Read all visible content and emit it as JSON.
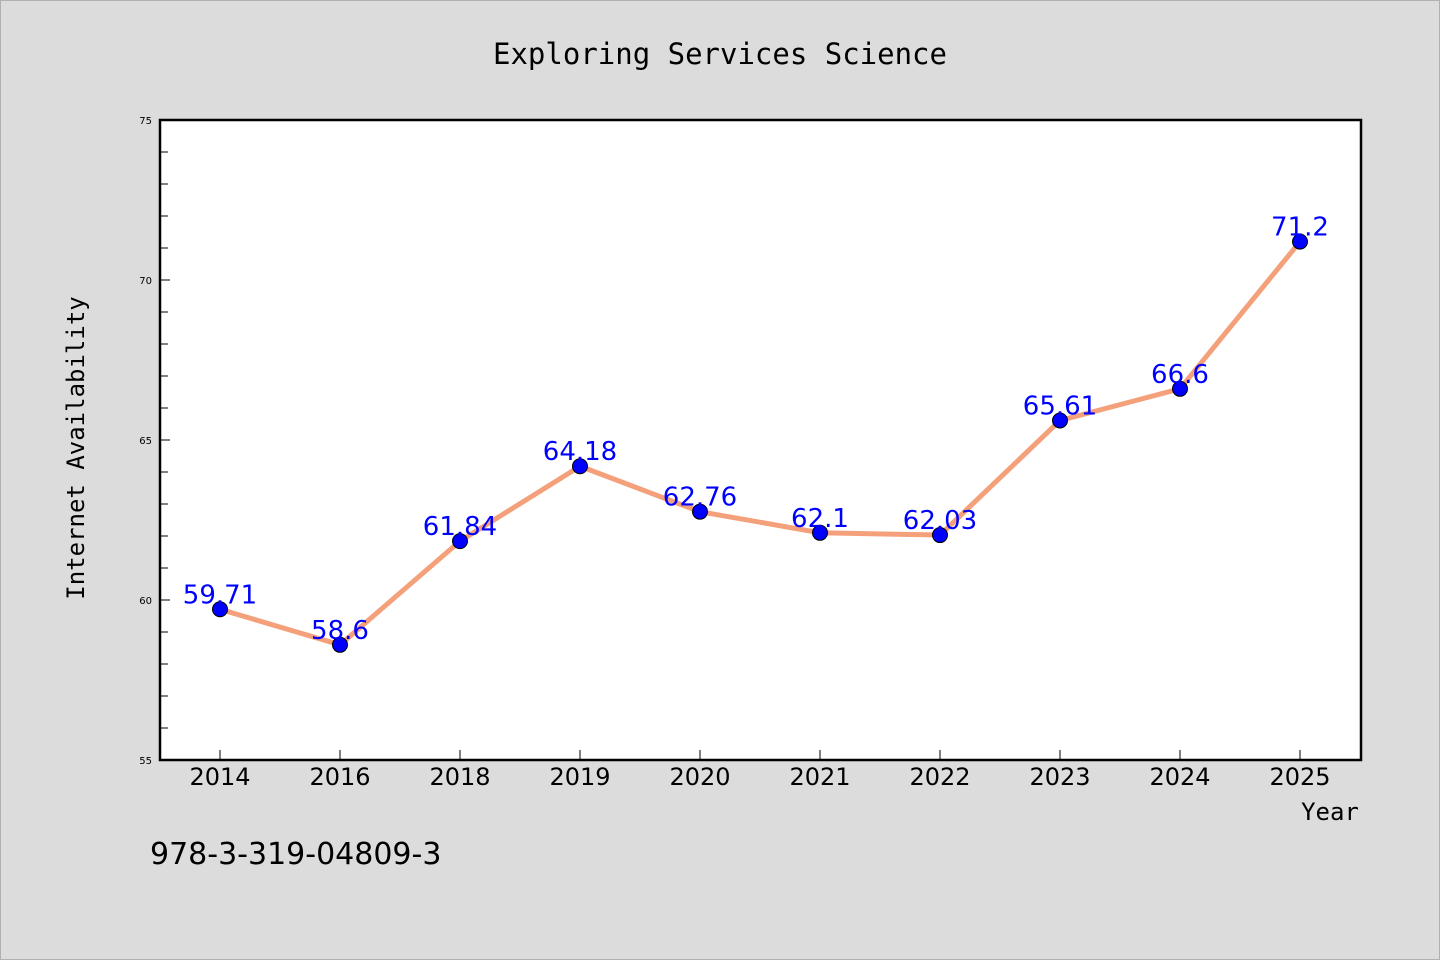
{
  "chart_data": {
    "type": "line",
    "title": "Exploring Services Science",
    "xlabel": "Year",
    "ylabel": "Internet Availability",
    "categories": [
      "2014",
      "2016",
      "2018",
      "2019",
      "2020",
      "2021",
      "2022",
      "2023",
      "2024",
      "2025"
    ],
    "series": [
      {
        "values": [
          59.71,
          58.6,
          61.84,
          64.18,
          62.76,
          62.1,
          62.03,
          65.61,
          66.6,
          71.2
        ],
        "data_labels": [
          "59.71",
          "58.6",
          "61.84",
          "64.18",
          "62.76",
          "62.1",
          "62.03",
          "65.61",
          "66.6",
          "71.2"
        ]
      }
    ],
    "ylim": [
      55,
      75
    ],
    "yticks": [
      "55",
      "60",
      "65",
      "70",
      "75"
    ],
    "grid": false,
    "legend": "none",
    "colors": {
      "line": "#f4a07a",
      "marker": "#0000ff",
      "data_label": "#0000ff",
      "background": "#dcdcdc",
      "plot_background": "#ffffff"
    }
  },
  "footer": {
    "isbn": "978-3-319-04809-3"
  }
}
